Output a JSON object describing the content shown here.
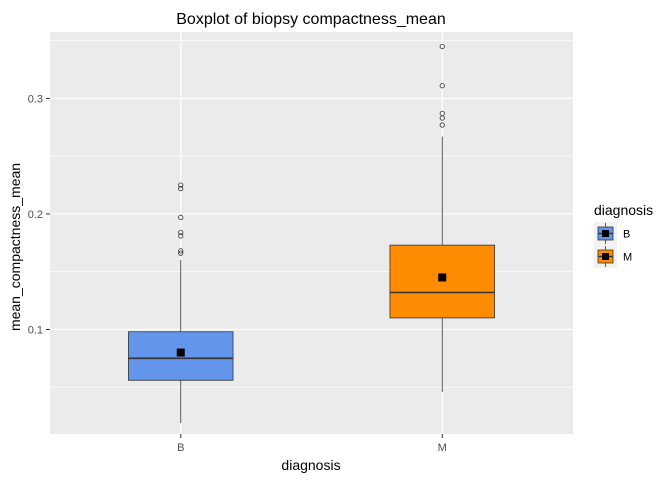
{
  "chart_data": {
    "type": "boxplot",
    "title": "Boxplot of  biopsy compactness_mean",
    "xlabel": "diagnosis",
    "ylabel": "mean_compactness_mean",
    "categories": [
      "B",
      "M"
    ],
    "ylim": [
      0.0095,
      0.3575
    ],
    "yticks": [
      0.1,
      0.2,
      0.3
    ],
    "ytick_labels": [
      "0.1",
      "0.2",
      "0.3"
    ],
    "grid": true,
    "legend": {
      "title": "diagnosis",
      "position": "right",
      "entries": [
        {
          "label": "B",
          "color": "#6495ED"
        },
        {
          "label": "M",
          "color": "#FF8C00"
        }
      ]
    },
    "boxes": [
      {
        "category": "B",
        "color": "#6495ED",
        "whisker_low": 0.019,
        "q1": 0.056,
        "median": 0.075,
        "q3": 0.098,
        "whisker_high": 0.16,
        "mean": 0.08,
        "outliers": [
          0.225,
          0.222,
          0.197,
          0.184,
          0.181,
          0.168,
          0.166
        ]
      },
      {
        "category": "M",
        "color": "#FF8C00",
        "whisker_low": 0.046,
        "q1": 0.11,
        "median": 0.132,
        "q3": 0.173,
        "whisker_high": 0.267,
        "mean": 0.145,
        "outliers": [
          0.345,
          0.311,
          0.287,
          0.283,
          0.277
        ]
      }
    ]
  }
}
